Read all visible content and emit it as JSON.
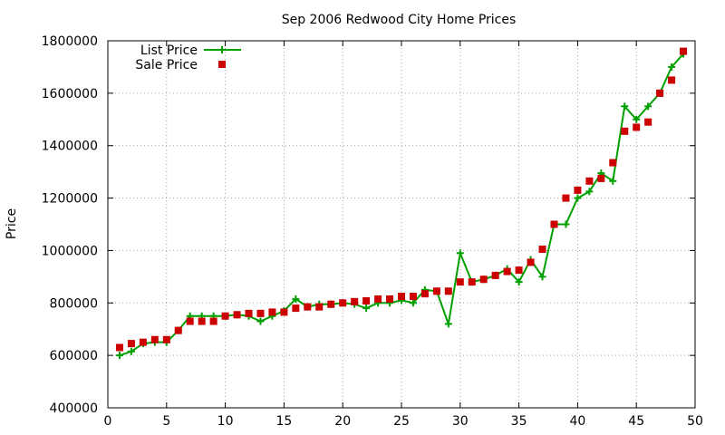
{
  "chart_data": {
    "type": "line",
    "title": "Sep 2006 Redwood City Home Prices",
    "xlabel": "",
    "ylabel": "Price",
    "xlim": [
      0,
      50
    ],
    "ylim": [
      400000,
      1800000
    ],
    "xticks": [
      0,
      5,
      10,
      15,
      20,
      25,
      30,
      35,
      40,
      45,
      50
    ],
    "yticks": [
      400000,
      600000,
      800000,
      1000000,
      1200000,
      1400000,
      1600000,
      1800000
    ],
    "grid": true,
    "legend_position": "top-left",
    "series": [
      {
        "name": "List Price",
        "style": "line-plus",
        "color": "#00a000",
        "x": [
          1,
          2,
          3,
          4,
          5,
          6,
          7,
          8,
          9,
          10,
          11,
          12,
          13,
          14,
          15,
          16,
          17,
          18,
          19,
          20,
          21,
          22,
          23,
          24,
          25,
          26,
          27,
          28,
          29,
          30,
          31,
          32,
          33,
          34,
          35,
          36,
          37,
          38,
          39,
          40,
          41,
          42,
          43,
          44,
          45,
          46,
          47,
          48,
          49
        ],
        "y": [
          600000,
          615000,
          645000,
          650000,
          650000,
          695000,
          750000,
          750000,
          750000,
          750000,
          755000,
          750000,
          730000,
          750000,
          770000,
          815000,
          785000,
          795000,
          795000,
          800000,
          795000,
          780000,
          800000,
          800000,
          810000,
          800000,
          850000,
          845000,
          720000,
          990000,
          880000,
          890000,
          905000,
          930000,
          880000,
          965000,
          900000,
          1100000,
          1100000,
          1200000,
          1225000,
          1295000,
          1265000,
          1550000,
          1500000,
          1550000,
          1600000,
          1700000,
          1750000
        ]
      },
      {
        "name": "Sale Price",
        "style": "square-points",
        "color": "#cc0000",
        "x": [
          1,
          2,
          3,
          4,
          5,
          6,
          7,
          8,
          9,
          10,
          11,
          12,
          13,
          14,
          15,
          16,
          17,
          18,
          19,
          20,
          21,
          22,
          23,
          24,
          25,
          26,
          27,
          28,
          29,
          30,
          31,
          32,
          33,
          34,
          35,
          36,
          37,
          38,
          39,
          40,
          41,
          42,
          43,
          44,
          45,
          46,
          47,
          48,
          49
        ],
        "y": [
          630000,
          645000,
          650000,
          660000,
          660000,
          695000,
          730000,
          730000,
          730000,
          750000,
          755000,
          760000,
          760000,
          765000,
          765000,
          780000,
          785000,
          785000,
          795000,
          800000,
          805000,
          808000,
          815000,
          815000,
          825000,
          825000,
          835000,
          845000,
          845000,
          880000,
          880000,
          890000,
          905000,
          920000,
          925000,
          955000,
          1005000,
          1100000,
          1200000,
          1230000,
          1265000,
          1275000,
          1335000,
          1455000,
          1470000,
          1490000,
          1600000,
          1650000,
          1760000
        ]
      }
    ]
  }
}
